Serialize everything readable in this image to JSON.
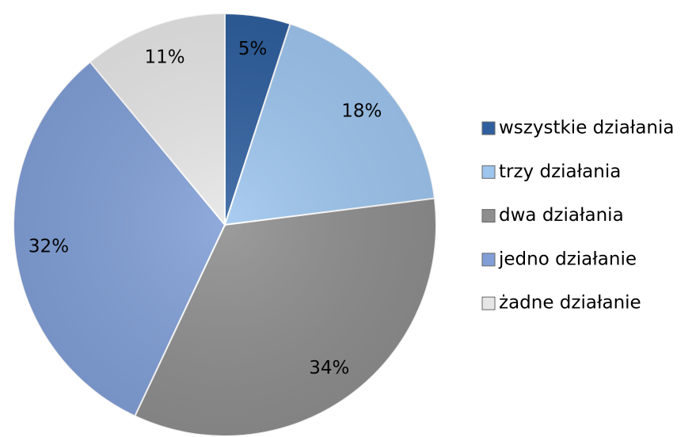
{
  "chart_data": {
    "type": "pie",
    "categories": [
      "wszystkie działania",
      "trzy działania",
      "dwa działania",
      "jedno działanie",
      "żadne działanie"
    ],
    "values": [
      5,
      18,
      34,
      32,
      11
    ],
    "value_labels": [
      "5%",
      "18%",
      "34%",
      "32%",
      "11%"
    ],
    "colors": [
      "#2f5f9e",
      "#9ec5ee",
      "#8e8e8e",
      "#819fd6",
      "#e6e6e6"
    ],
    "legend": "right"
  }
}
